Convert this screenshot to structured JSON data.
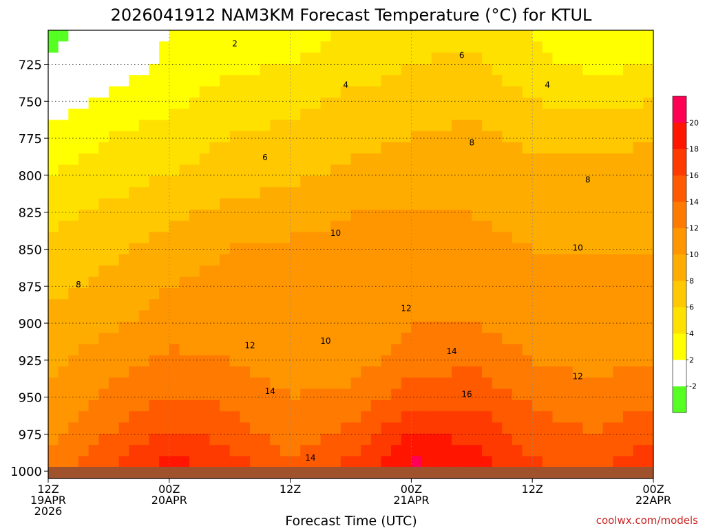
{
  "chart_data": {
    "type": "heatmap",
    "title": "2026041912 NAM3KM Forecast Temperature (°C) for KTUL",
    "xlabel": "Forecast Time (UTC)",
    "ylabel": "",
    "ytick_labels": [
      "725",
      "750",
      "775",
      "800",
      "825",
      "850",
      "875",
      "900",
      "925",
      "950",
      "975",
      "1000"
    ],
    "y_values_hpa": [
      725,
      750,
      775,
      800,
      825,
      850,
      875,
      900,
      925,
      950,
      975,
      1000
    ],
    "ylim": [
      1005,
      702
    ],
    "xlim_hours": [
      0,
      60
    ],
    "x_ticks": [
      {
        "hour": 0,
        "lines": [
          "12Z",
          "19APR",
          "2026"
        ]
      },
      {
        "hour": 12,
        "lines": [
          "00Z",
          "20APR"
        ]
      },
      {
        "hour": 24,
        "lines": [
          "12Z"
        ]
      },
      {
        "hour": 36,
        "lines": [
          "00Z",
          "21APR"
        ]
      },
      {
        "hour": 48,
        "lines": [
          "12Z"
        ]
      },
      {
        "hour": 60,
        "lines": [
          "00Z",
          "22APR"
        ]
      }
    ],
    "colorbar": {
      "levels": [
        "-2",
        "2",
        "4",
        "6",
        "8",
        "10",
        "12",
        "14",
        "16",
        "18",
        "20"
      ],
      "bands": [
        {
          "value": -4,
          "color": "#55ff22"
        },
        {
          "value": 0,
          "color": "#ffffff"
        },
        {
          "value": 3,
          "color": "#ffff00"
        },
        {
          "value": 5,
          "color": "#ffe100"
        },
        {
          "value": 7,
          "color": "#ffc800"
        },
        {
          "value": 9,
          "color": "#ffac00"
        },
        {
          "value": 11,
          "color": "#ff9600"
        },
        {
          "value": 13,
          "color": "#ff7a00"
        },
        {
          "value": 15,
          "color": "#ff5a00"
        },
        {
          "value": 17,
          "color": "#ff3a00"
        },
        {
          "value": 19,
          "color": "#ff1500"
        },
        {
          "value": 21,
          "color": "#ff0055"
        }
      ]
    },
    "temperature_grid": {
      "hours": [
        0,
        6,
        12,
        18,
        24,
        30,
        36,
        42,
        48,
        54,
        60
      ],
      "pressure_hpa": [
        705,
        725,
        750,
        775,
        800,
        825,
        850,
        875,
        900,
        925,
        950,
        975,
        1000
      ],
      "values_c": [
        [
          -3,
          -0.5,
          2,
          2.5,
          3,
          4.5,
          5.5,
          5.5,
          4,
          3,
          3
        ],
        [
          -1.5,
          0.5,
          2.5,
          3.5,
          4,
          5,
          6,
          6.5,
          4.5,
          3.5,
          4
        ],
        [
          1,
          2.5,
          3.5,
          5,
          5.5,
          6.5,
          7,
          7.5,
          6,
          5.5,
          6
        ],
        [
          2.5,
          4,
          5,
          6,
          6.5,
          7.5,
          8,
          8.5,
          7.5,
          7.5,
          8
        ],
        [
          4,
          5,
          6,
          7,
          7.5,
          8.5,
          9,
          9.5,
          8.5,
          8.5,
          8.5
        ],
        [
          5.5,
          6.5,
          7.5,
          8.5,
          9,
          10,
          10,
          10,
          9.5,
          9.5,
          9.5
        ],
        [
          6.5,
          7.5,
          9,
          10,
          10.5,
          10.5,
          10.5,
          10.5,
          10,
          10,
          10
        ],
        [
          7.5,
          8.5,
          10,
          10.5,
          10.5,
          10.5,
          11,
          11,
          10.5,
          10.5,
          10.5
        ],
        [
          8.5,
          9.5,
          11,
          11,
          10.5,
          10,
          12,
          12,
          11,
          11,
          11
        ],
        [
          9.5,
          11,
          12.5,
          12,
          11,
          11,
          13,
          13.5,
          12,
          11.5,
          12
        ],
        [
          10.5,
          12.5,
          14,
          13.5,
          12,
          12.5,
          15,
          15.5,
          13.5,
          12.5,
          13.5
        ],
        [
          11.5,
          14,
          16.5,
          15,
          13,
          14.5,
          18,
          17.5,
          15,
          14,
          15.5
        ],
        [
          12.5,
          16,
          19.5,
          17.5,
          14.5,
          17,
          21,
          19.5,
          16.5,
          15.5,
          18
        ]
      ]
    },
    "contour_labels": [
      {
        "text": "2",
        "hour": 18.5,
        "p": 711
      },
      {
        "text": "4",
        "hour": 29.5,
        "p": 739
      },
      {
        "text": "6",
        "hour": 41,
        "p": 719
      },
      {
        "text": "4",
        "hour": 49.5,
        "p": 739
      },
      {
        "text": "6",
        "hour": 21.5,
        "p": 788
      },
      {
        "text": "8",
        "hour": 42,
        "p": 778
      },
      {
        "text": "8",
        "hour": 53.5,
        "p": 803
      },
      {
        "text": "10",
        "hour": 28.5,
        "p": 839
      },
      {
        "text": "10",
        "hour": 52.5,
        "p": 849
      },
      {
        "text": "8",
        "hour": 3,
        "p": 874
      },
      {
        "text": "12",
        "hour": 35.5,
        "p": 890
      },
      {
        "text": "10",
        "hour": 27.5,
        "p": 912
      },
      {
        "text": "12",
        "hour": 20,
        "p": 915
      },
      {
        "text": "14",
        "hour": 40,
        "p": 919
      },
      {
        "text": "12",
        "hour": 52.5,
        "p": 936
      },
      {
        "text": "14",
        "hour": 22,
        "p": 946
      },
      {
        "text": "16",
        "hour": 41.5,
        "p": 948
      },
      {
        "text": "14",
        "hour": 26,
        "p": 991
      }
    ],
    "terrain_color": "#a0522d"
  },
  "credit": "coolwx.com/models"
}
